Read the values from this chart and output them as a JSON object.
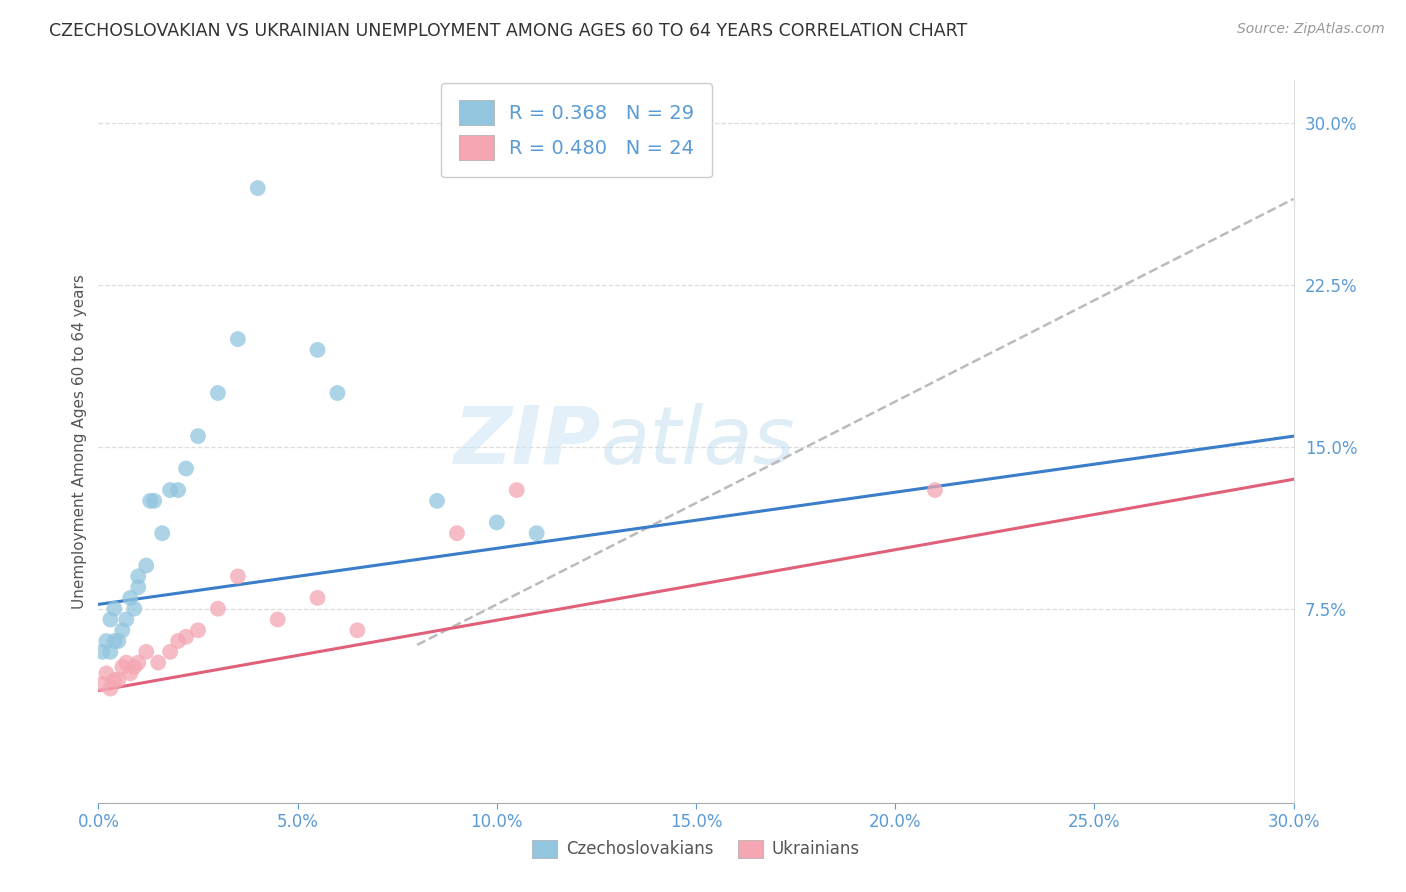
{
  "title": "CZECHOSLOVAKIAN VS UKRAINIAN UNEMPLOYMENT AMONG AGES 60 TO 64 YEARS CORRELATION CHART",
  "source": "Source: ZipAtlas.com",
  "ylabel_text": "Unemployment Among Ages 60 to 64 years",
  "legend_labels": [
    "Czechoslovakians",
    "Ukrainians"
  ],
  "legend_r": [
    "R = 0.368",
    "R = 0.480"
  ],
  "legend_n": [
    "N = 29",
    "N = 24"
  ],
  "czech_color": "#92c5de",
  "ukraine_color": "#f4a6b2",
  "czech_line_color": "#3a7dc9",
  "ukraine_line_color": "#e0607a",
  "dashed_line_color": "#bbbbbb",
  "watermark_zip": "ZIP",
  "watermark_atlas": "atlas",
  "background_color": "#ffffff",
  "axis_color": "#5b9bd5",
  "xlim": [
    0.0,
    0.3
  ],
  "ylim": [
    -0.015,
    0.32
  ],
  "yticks": [
    0.075,
    0.15,
    0.225,
    0.3
  ],
  "ytick_labels": [
    "7.5%",
    "15.0%",
    "22.5%",
    "30.0%"
  ],
  "xticks": [
    0.0,
    0.05,
    0.1,
    0.15,
    0.2,
    0.25,
    0.3
  ],
  "xtick_labels": [
    "0.0%",
    "5.0%",
    "10.0%",
    "15.0%",
    "20.0%",
    "25.0%",
    "30.0%"
  ],
  "czech_x": [
    0.001,
    0.002,
    0.003,
    0.003,
    0.004,
    0.004,
    0.005,
    0.006,
    0.007,
    0.008,
    0.009,
    0.01,
    0.01,
    0.012,
    0.013,
    0.014,
    0.016,
    0.018,
    0.02,
    0.022,
    0.025,
    0.03,
    0.035,
    0.04,
    0.055,
    0.06,
    0.085,
    0.1,
    0.11
  ],
  "czech_y": [
    0.055,
    0.06,
    0.055,
    0.07,
    0.06,
    0.075,
    0.06,
    0.065,
    0.07,
    0.08,
    0.075,
    0.085,
    0.09,
    0.095,
    0.125,
    0.125,
    0.11,
    0.13,
    0.13,
    0.14,
    0.155,
    0.175,
    0.2,
    0.27,
    0.195,
    0.175,
    0.125,
    0.115,
    0.11
  ],
  "ukraine_x": [
    0.001,
    0.002,
    0.003,
    0.004,
    0.005,
    0.006,
    0.007,
    0.008,
    0.009,
    0.01,
    0.012,
    0.015,
    0.018,
    0.02,
    0.022,
    0.025,
    0.03,
    0.035,
    0.045,
    0.055,
    0.065,
    0.09,
    0.105,
    0.21
  ],
  "ukraine_y": [
    0.04,
    0.045,
    0.038,
    0.042,
    0.042,
    0.048,
    0.05,
    0.045,
    0.048,
    0.05,
    0.055,
    0.05,
    0.055,
    0.06,
    0.062,
    0.065,
    0.075,
    0.09,
    0.07,
    0.08,
    0.065,
    0.11,
    0.13,
    0.13
  ],
  "czech_line_x0": 0.0,
  "czech_line_y0": 0.077,
  "czech_line_x1": 0.3,
  "czech_line_y1": 0.155,
  "ukraine_line_x0": 0.0,
  "ukraine_line_y0": 0.037,
  "ukraine_line_x1": 0.3,
  "ukraine_line_y1": 0.135,
  "dash_line_x0": 0.05,
  "dash_line_y0": 0.03,
  "dash_line_x1": 0.3,
  "dash_line_y1": 0.265
}
